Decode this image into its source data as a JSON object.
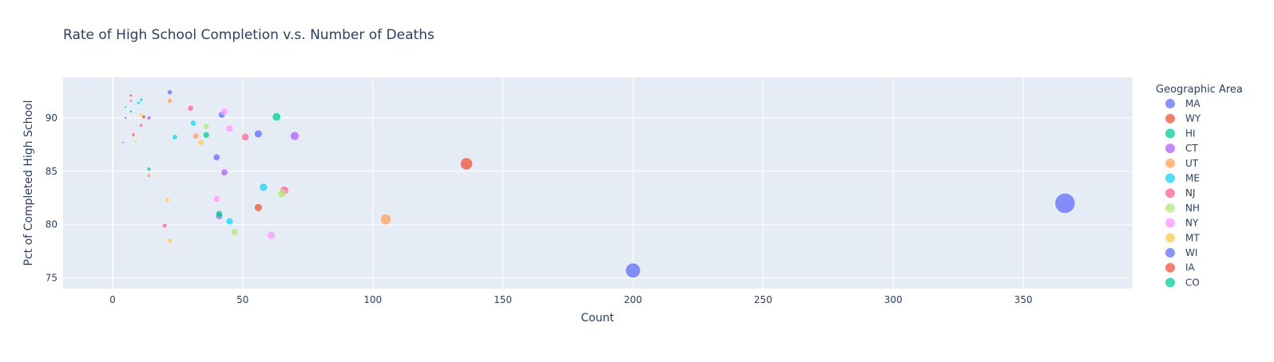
{
  "chart_data": {
    "type": "scatter",
    "title": "Rate of High School Completion v.s. Number of Deaths",
    "xlabel": "Count",
    "ylabel": "Pct of Completed High School",
    "xlim": [
      -19,
      392
    ],
    "ylim": [
      74,
      93.8
    ],
    "x_ticks": [
      0,
      50,
      100,
      150,
      200,
      250,
      300,
      350
    ],
    "y_ticks": [
      75,
      80,
      85,
      90
    ],
    "grid": true,
    "legend_title": "Geographic Area",
    "legend_position": "right",
    "series": [
      {
        "name": "MA",
        "color": "#636efa",
        "points": [
          [
            366,
            82.0
          ],
          [
            200,
            75.7
          ],
          [
            56,
            88.5
          ],
          [
            40,
            86.3
          ],
          [
            22,
            92.4
          ],
          [
            41,
            80.8
          ],
          [
            42,
            90.3
          ]
        ]
      },
      {
        "name": "WY",
        "color": "#EF553B",
        "points": [
          [
            136,
            85.7
          ],
          [
            56,
            81.6
          ],
          [
            7,
            92.1
          ]
        ]
      },
      {
        "name": "HI",
        "color": "#00cc96",
        "points": [
          [
            63,
            90.1
          ],
          [
            36,
            88.4
          ],
          [
            14,
            85.2
          ],
          [
            41,
            81.0
          ]
        ]
      },
      {
        "name": "CT",
        "color": "#ab63fa",
        "points": [
          [
            70,
            88.3
          ],
          [
            43,
            84.9
          ],
          [
            14,
            90.0
          ],
          [
            7,
            91.6
          ]
        ]
      },
      {
        "name": "UT",
        "color": "#FFA15A",
        "points": [
          [
            105,
            80.5
          ],
          [
            32,
            88.3
          ],
          [
            22,
            91.6
          ],
          [
            14,
            84.6
          ]
        ]
      },
      {
        "name": "ME",
        "color": "#19d3f3",
        "points": [
          [
            58,
            83.5
          ],
          [
            45,
            80.3
          ],
          [
            31,
            89.5
          ],
          [
            24,
            88.2
          ],
          [
            11,
            91.7
          ],
          [
            10,
            91.4
          ]
        ]
      },
      {
        "name": "NJ",
        "color": "#FF6692",
        "points": [
          [
            51,
            88.2
          ],
          [
            66,
            83.2
          ],
          [
            30,
            90.9
          ],
          [
            20,
            79.9
          ],
          [
            11,
            89.3
          ],
          [
            8,
            88.5
          ]
        ]
      },
      {
        "name": "NH",
        "color": "#B6E880",
        "points": [
          [
            65,
            82.9
          ],
          [
            47,
            79.3
          ],
          [
            36,
            89.2
          ],
          [
            9,
            87.8
          ]
        ]
      },
      {
        "name": "NY",
        "color": "#FF97FF",
        "points": [
          [
            61,
            79.0
          ],
          [
            45,
            89.0
          ],
          [
            43,
            90.6
          ],
          [
            40,
            82.4
          ]
        ]
      },
      {
        "name": "MT",
        "color": "#FECB52",
        "points": [
          [
            34,
            87.7
          ],
          [
            22,
            78.5
          ],
          [
            21,
            82.3
          ],
          [
            11,
            90.3
          ],
          [
            12,
            90.1
          ]
        ]
      },
      {
        "name": "WI",
        "color": "#636efa",
        "points": [
          [
            4,
            87.7
          ],
          [
            5,
            90.0
          ]
        ]
      },
      {
        "name": "IA",
        "color": "#EF553B",
        "points": [
          [
            12,
            90.1
          ],
          [
            8,
            88.4
          ]
        ]
      },
      {
        "name": "CO",
        "color": "#00cc96",
        "points": [
          [
            7,
            90.6
          ],
          [
            5,
            91.0
          ]
        ]
      }
    ]
  }
}
